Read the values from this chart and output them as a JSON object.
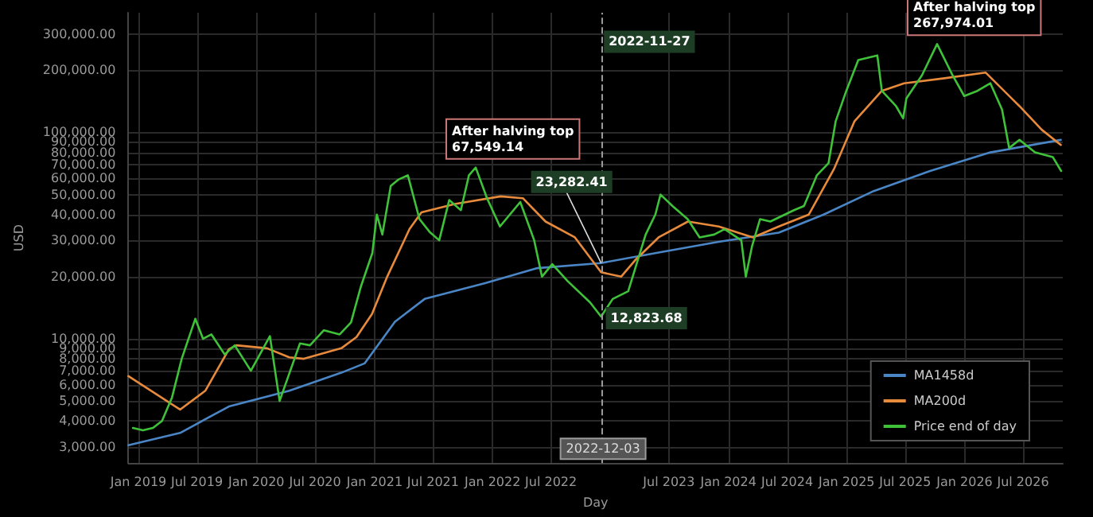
{
  "chart_data": {
    "type": "line",
    "xlabel": "Day",
    "ylabel": "USD",
    "log": "y",
    "grid": true,
    "legend": "bottom right",
    "marker": "none",
    "line_style": "solid",
    "xlim": [
      "2018-12-01",
      "2026-11-01"
    ],
    "xticks": [
      {
        "value": "2019-01-01",
        "label": "Jan 2019"
      },
      {
        "value": "2019-07-01",
        "label": "Jul 2019"
      },
      {
        "value": "2020-01-01",
        "label": "Jan 2020"
      },
      {
        "value": "2020-07-01",
        "label": "Jul 2020"
      },
      {
        "value": "2021-01-01",
        "label": "Jan 2021"
      },
      {
        "value": "2021-07-01",
        "label": "Jul 2021"
      },
      {
        "value": "2022-01-01",
        "label": "Jan 2022"
      },
      {
        "value": "2022-07-01",
        "label": "Jul 2022"
      },
      {
        "value": "2023-07-01",
        "label": "Jul 2023"
      },
      {
        "value": "2024-01-01",
        "label": "Jan 2024"
      },
      {
        "value": "2024-07-01",
        "label": "Jul 2024"
      },
      {
        "value": "2025-01-01",
        "label": "Jan 2025"
      },
      {
        "value": "2025-07-01",
        "label": "Jul 2025"
      },
      {
        "value": "2026-01-01",
        "label": "Jan 2026"
      },
      {
        "value": "2026-07-01",
        "label": "Jul 2026"
      }
    ],
    "ylim": [
      2500,
      380000
    ],
    "yticks": [
      {
        "value": 3000,
        "label": "3,000.00"
      },
      {
        "value": 4000,
        "label": "4,000.00"
      },
      {
        "value": 5000,
        "label": "5,000.00"
      },
      {
        "value": 6000,
        "label": "6,000.00"
      },
      {
        "value": 7000,
        "label": "7,000.00"
      },
      {
        "value": 8000,
        "label": "8,000.00"
      },
      {
        "value": 9000,
        "label": "9,000.00"
      },
      {
        "value": 10000,
        "label": "10,000.00"
      },
      {
        "value": 20000,
        "label": "20,000.00"
      },
      {
        "value": 30000,
        "label": "30,000.00"
      },
      {
        "value": 40000,
        "label": "40,000.00"
      },
      {
        "value": 50000,
        "label": "50,000.00"
      },
      {
        "value": 60000,
        "label": "60,000.00"
      },
      {
        "value": 70000,
        "label": "70,000.00"
      },
      {
        "value": 80000,
        "label": "80,000.00"
      },
      {
        "value": 90000,
        "label": "90,000.00"
      },
      {
        "value": 100000,
        "label": "100,000.00"
      },
      {
        "value": 200000,
        "label": "200,000.00"
      },
      {
        "value": 300000,
        "label": "300,000.00"
      }
    ],
    "series": [
      {
        "name": "MA1458d",
        "color": "#4a86c5",
        "x": [
          "2018-12-01",
          "2019-05-10",
          "2019-10-08",
          "2020-04-12",
          "2020-09-20",
          "2020-12-01",
          "2021-03-05",
          "2021-06-05",
          "2021-12-09",
          "2022-05-20",
          "2022-12-03",
          "2023-05-30",
          "2023-12-02",
          "2024-06-05",
          "2024-10-22",
          "2025-03-26",
          "2025-09-16",
          "2026-03-22",
          "2026-10-26"
        ],
        "values": [
          3050,
          3500,
          4700,
          5600,
          6850,
          7600,
          12100,
          15600,
          18600,
          22000,
          23282.41,
          26200,
          29500,
          32700,
          40000,
          52000,
          65000,
          80000,
          92000
        ]
      },
      {
        "name": "MA200d",
        "color": "#e88a3c",
        "x": [
          "2018-12-01",
          "2019-05-10",
          "2019-07-27",
          "2019-10-08",
          "2019-10-31",
          "2020-02-03",
          "2020-04-12",
          "2020-05-27",
          "2020-09-20",
          "2020-11-06",
          "2020-12-24",
          "2021-02-09",
          "2021-04-19",
          "2021-05-26",
          "2021-09-06",
          "2022-01-26",
          "2022-04-05",
          "2022-06-14",
          "2022-09-13",
          "2022-12-03",
          "2023-02-03",
          "2023-03-18",
          "2023-05-30",
          "2023-08-29",
          "2023-12-02",
          "2024-03-17",
          "2024-06-05",
          "2024-09-06",
          "2024-11-24",
          "2025-01-25",
          "2025-04-20",
          "2025-06-28",
          "2025-10-31",
          "2026-03-07",
          "2026-06-20",
          "2026-08-28",
          "2026-10-26"
        ],
        "values": [
          6600,
          4540,
          5600,
          8900,
          9300,
          9000,
          8130,
          8000,
          9000,
          10200,
          13200,
          20000,
          34000,
          41000,
          45000,
          49000,
          48000,
          37000,
          31000,
          21000,
          20000,
          24000,
          31000,
          37000,
          35000,
          31000,
          35000,
          40000,
          67000,
          113000,
          159000,
          173000,
          183000,
          195000,
          134000,
          103000,
          87000
        ]
      },
      {
        "name": "Price end of day",
        "color": "#3fc23a",
        "x": [
          "2018-12-15",
          "2019-01-15",
          "2019-02-15",
          "2019-03-15",
          "2019-04-15",
          "2019-05-15",
          "2019-06-26",
          "2019-07-20",
          "2019-08-15",
          "2019-09-25",
          "2019-10-26",
          "2019-12-15",
          "2020-02-12",
          "2020-03-13",
          "2020-04-15",
          "2020-05-15",
          "2020-06-15",
          "2020-07-28",
          "2020-09-15",
          "2020-10-20",
          "2020-11-20",
          "2020-12-25",
          "2021-01-08",
          "2021-01-25",
          "2021-02-20",
          "2021-03-15",
          "2021-04-14",
          "2021-05-20",
          "2021-06-20",
          "2021-07-20",
          "2021-08-20",
          "2021-09-25",
          "2021-10-20",
          "2021-11-10",
          "2021-12-15",
          "2022-01-24",
          "2022-03-28",
          "2022-05-10",
          "2022-06-03",
          "2022-07-05",
          "2022-08-22",
          "2022-10-30",
          "2022-12-03",
          "2023-01-08",
          "2023-02-25",
          "2023-04-20",
          "2023-05-20",
          "2023-06-05",
          "2023-07-12",
          "2023-08-28",
          "2023-10-04",
          "2023-11-18",
          "2023-12-20",
          "2024-02-10",
          "2024-02-24",
          "2024-03-14",
          "2024-04-08",
          "2024-05-10",
          "2024-07-22",
          "2024-08-22",
          "2024-10-01",
          "2024-11-06",
          "2024-11-28",
          "2024-12-31",
          "2025-02-06",
          "2025-04-06",
          "2025-04-20",
          "2025-06-03",
          "2025-06-25",
          "2025-07-05",
          "2025-08-22",
          "2025-10-08",
          "2025-11-25",
          "2025-12-31",
          "2026-02-10",
          "2026-03-22",
          "2026-04-27",
          "2026-05-19",
          "2026-06-20",
          "2026-08-07",
          "2026-10-01",
          "2026-10-27"
        ],
        "values": [
          3700,
          3600,
          3700,
          4000,
          5200,
          8000,
          12500,
          10000,
          10500,
          8400,
          9300,
          7000,
          10300,
          5000,
          7000,
          9500,
          9300,
          11000,
          10500,
          12000,
          18000,
          26000,
          40000,
          32000,
          55000,
          59000,
          62000,
          38000,
          33000,
          30000,
          47000,
          42000,
          62000,
          67549.14,
          48000,
          35000,
          46000,
          30000,
          20000,
          23000,
          19000,
          15000,
          12823.68,
          15600,
          17000,
          32000,
          40000,
          50000,
          44000,
          38000,
          31000,
          32000,
          34000,
          30000,
          20000,
          28000,
          38000,
          37000,
          42000,
          44000,
          62000,
          71000,
          113000,
          159000,
          224000,
          236000,
          159000,
          134000,
          117000,
          146000,
          189000,
          267974.01,
          189000,
          150000,
          159000,
          173000,
          129000,
          84000,
          92000,
          80000,
          76000,
          65000
        ]
      }
    ],
    "ref_lines": [
      {
        "axis": "x",
        "value": "2022-12-03",
        "label": "2022-12-03",
        "color": "#9a9a9a",
        "line_style": "dashed"
      }
    ],
    "annotations": [
      {
        "text": "After halving top\n67,549.14",
        "x": "2021-11-10",
        "y": 67549.14
      },
      {
        "text": "After halving top\n267,974.01",
        "x": "2025-10-08",
        "y": 267974.01
      },
      {
        "text": "2022-11-27",
        "x": "2022-11-27",
        "y": 280000
      },
      {
        "text": "23,282.41",
        "x": "2022-12-03",
        "y": 23282.41
      },
      {
        "text": "12,823.68",
        "x": "2022-12-03",
        "y": 12823.68
      }
    ]
  }
}
